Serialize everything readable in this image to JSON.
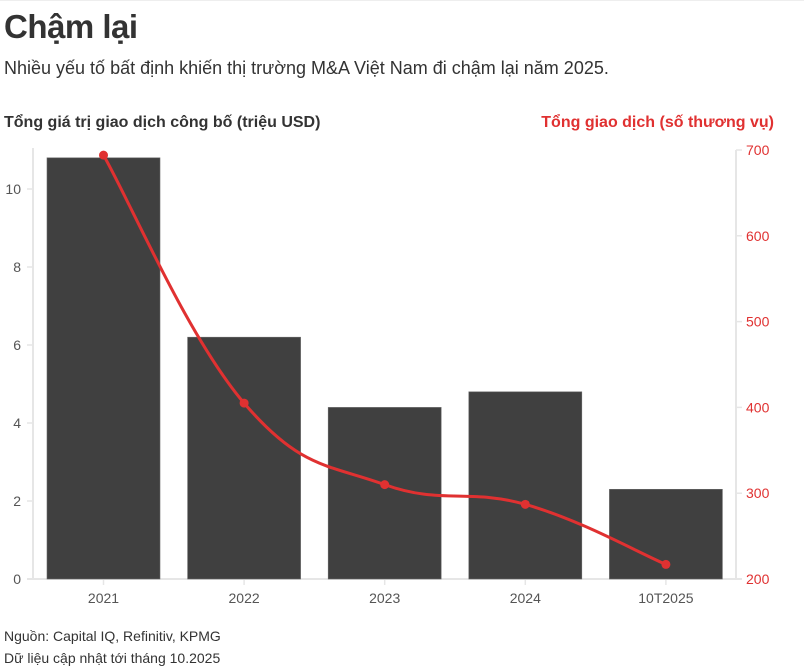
{
  "header": {
    "title": "Chậm lại",
    "subtitle": "Nhiều yếu tố bất định khiến thị trường M&A Việt Nam đi chậm lại năm 2025."
  },
  "footer": {
    "source": "Nguồn: Capital IQ, Refinitiv, KPMG",
    "note": "Dữ liệu cập nhật tới tháng 10.2025"
  },
  "colors": {
    "bar": "#404040",
    "line": "#e03131",
    "axis": "#e6e6e6",
    "text": "#333333"
  },
  "chart_data": {
    "type": "bar",
    "title": "Chậm lại",
    "categories": [
      "2021",
      "2022",
      "2023",
      "2024",
      "10T2025"
    ],
    "series": [
      {
        "name": "Tổng giá trị giao dịch công bố (triệu USD)",
        "type": "bar",
        "axis": "left",
        "values": [
          10.8,
          6.2,
          4.4,
          4.8,
          2.3
        ]
      },
      {
        "name": "Tổng giao dịch (số thương vụ)",
        "type": "line",
        "axis": "right",
        "values": [
          694,
          405,
          310,
          287,
          217
        ]
      }
    ],
    "ylabel": "Tổng giá trị giao dịch công bố (triệu USD)",
    "ylabel_right": "Tổng giao dịch (số thương vụ)",
    "ylim": [
      0,
      11
    ],
    "ylim_right": [
      200,
      700
    ],
    "yticks": [
      0,
      2,
      4,
      6,
      8,
      10
    ],
    "yticks_right": [
      200,
      300,
      400,
      500,
      600,
      700
    ],
    "xlabel": "",
    "grid": false,
    "legend": "none"
  }
}
